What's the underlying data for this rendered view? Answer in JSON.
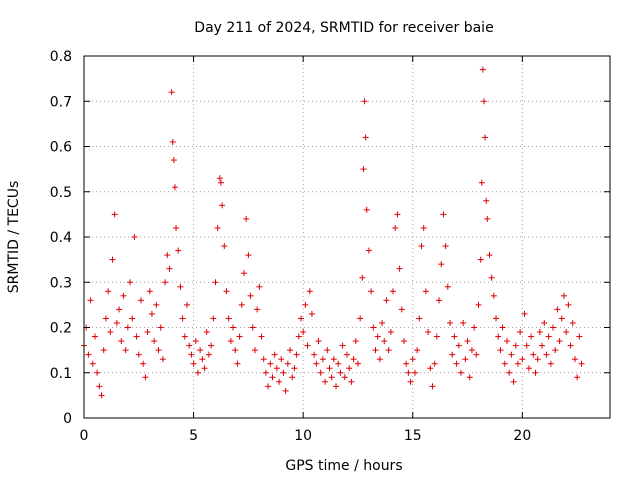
{
  "chart_data": {
    "type": "scatter",
    "title": "Day 211 of 2024, SRMTID for receiver baie",
    "xlabel": "GPS time / hours",
    "ylabel": "SRMTID / TECUs",
    "xlim": [
      0,
      24.0
    ],
    "ylim": [
      0,
      0.8
    ],
    "xticks": [
      "0",
      "5",
      "10",
      "15",
      "20"
    ],
    "yticks": [
      "0",
      "0.1",
      "0.2",
      "0.3",
      "0.4",
      "0.5",
      "0.6",
      "0.7",
      "0.8"
    ],
    "grid": true,
    "marker": "plus",
    "color": "#e00000",
    "series": [
      {
        "name": "SRMTID",
        "points": [
          [
            0.0,
            0.16
          ],
          [
            0.1,
            0.2
          ],
          [
            0.2,
            0.14
          ],
          [
            0.3,
            0.26
          ],
          [
            0.4,
            0.12
          ],
          [
            0.5,
            0.18
          ],
          [
            0.6,
            0.1
          ],
          [
            0.7,
            0.07
          ],
          [
            0.8,
            0.05
          ],
          [
            0.9,
            0.15
          ],
          [
            1.0,
            0.22
          ],
          [
            1.1,
            0.28
          ],
          [
            1.2,
            0.19
          ],
          [
            1.3,
            0.35
          ],
          [
            1.4,
            0.45
          ],
          [
            1.5,
            0.21
          ],
          [
            1.6,
            0.24
          ],
          [
            1.7,
            0.17
          ],
          [
            1.8,
            0.27
          ],
          [
            1.9,
            0.15
          ],
          [
            2.0,
            0.2
          ],
          [
            2.1,
            0.3
          ],
          [
            2.2,
            0.22
          ],
          [
            2.3,
            0.4
          ],
          [
            2.4,
            0.18
          ],
          [
            2.5,
            0.14
          ],
          [
            2.6,
            0.26
          ],
          [
            2.7,
            0.12
          ],
          [
            2.8,
            0.09
          ],
          [
            2.9,
            0.19
          ],
          [
            3.0,
            0.28
          ],
          [
            3.1,
            0.23
          ],
          [
            3.2,
            0.17
          ],
          [
            3.3,
            0.25
          ],
          [
            3.4,
            0.15
          ],
          [
            3.5,
            0.2
          ],
          [
            3.6,
            0.13
          ],
          [
            3.7,
            0.3
          ],
          [
            3.8,
            0.36
          ],
          [
            3.9,
            0.33
          ],
          [
            4.0,
            0.72
          ],
          [
            4.05,
            0.61
          ],
          [
            4.1,
            0.57
          ],
          [
            4.15,
            0.51
          ],
          [
            4.2,
            0.42
          ],
          [
            4.3,
            0.37
          ],
          [
            4.4,
            0.29
          ],
          [
            4.5,
            0.22
          ],
          [
            4.6,
            0.18
          ],
          [
            4.7,
            0.25
          ],
          [
            4.8,
            0.16
          ],
          [
            4.9,
            0.14
          ],
          [
            5.0,
            0.12
          ],
          [
            5.1,
            0.17
          ],
          [
            5.2,
            0.1
          ],
          [
            5.3,
            0.15
          ],
          [
            5.4,
            0.13
          ],
          [
            5.5,
            0.11
          ],
          [
            5.6,
            0.19
          ],
          [
            5.7,
            0.14
          ],
          [
            5.8,
            0.16
          ],
          [
            5.9,
            0.22
          ],
          [
            6.0,
            0.3
          ],
          [
            6.1,
            0.42
          ],
          [
            6.2,
            0.53
          ],
          [
            6.25,
            0.52
          ],
          [
            6.3,
            0.47
          ],
          [
            6.4,
            0.38
          ],
          [
            6.5,
            0.28
          ],
          [
            6.6,
            0.22
          ],
          [
            6.7,
            0.17
          ],
          [
            6.8,
            0.2
          ],
          [
            6.9,
            0.15
          ],
          [
            7.0,
            0.12
          ],
          [
            7.1,
            0.18
          ],
          [
            7.2,
            0.25
          ],
          [
            7.3,
            0.32
          ],
          [
            7.4,
            0.44
          ],
          [
            7.5,
            0.36
          ],
          [
            7.6,
            0.27
          ],
          [
            7.7,
            0.2
          ],
          [
            7.8,
            0.15
          ],
          [
            7.9,
            0.24
          ],
          [
            8.0,
            0.29
          ],
          [
            8.1,
            0.18
          ],
          [
            8.2,
            0.13
          ],
          [
            8.3,
            0.1
          ],
          [
            8.4,
            0.07
          ],
          [
            8.5,
            0.12
          ],
          [
            8.6,
            0.09
          ],
          [
            8.7,
            0.14
          ],
          [
            8.8,
            0.11
          ],
          [
            8.9,
            0.08
          ],
          [
            9.0,
            0.13
          ],
          [
            9.1,
            0.1
          ],
          [
            9.2,
            0.06
          ],
          [
            9.3,
            0.12
          ],
          [
            9.4,
            0.15
          ],
          [
            9.5,
            0.09
          ],
          [
            9.6,
            0.11
          ],
          [
            9.7,
            0.14
          ],
          [
            9.8,
            0.18
          ],
          [
            9.9,
            0.22
          ],
          [
            10.0,
            0.19
          ],
          [
            10.1,
            0.25
          ],
          [
            10.2,
            0.16
          ],
          [
            10.3,
            0.28
          ],
          [
            10.4,
            0.23
          ],
          [
            10.5,
            0.14
          ],
          [
            10.6,
            0.12
          ],
          [
            10.7,
            0.17
          ],
          [
            10.8,
            0.1
          ],
          [
            10.9,
            0.13
          ],
          [
            11.0,
            0.08
          ],
          [
            11.1,
            0.15
          ],
          [
            11.2,
            0.11
          ],
          [
            11.3,
            0.09
          ],
          [
            11.4,
            0.13
          ],
          [
            11.5,
            0.07
          ],
          [
            11.6,
            0.12
          ],
          [
            11.7,
            0.1
          ],
          [
            11.8,
            0.16
          ],
          [
            11.9,
            0.09
          ],
          [
            12.0,
            0.14
          ],
          [
            12.1,
            0.11
          ],
          [
            12.2,
            0.08
          ],
          [
            12.3,
            0.13
          ],
          [
            12.4,
            0.17
          ],
          [
            12.5,
            0.12
          ],
          [
            12.6,
            0.22
          ],
          [
            12.7,
            0.31
          ],
          [
            12.75,
            0.55
          ],
          [
            12.8,
            0.7
          ],
          [
            12.85,
            0.62
          ],
          [
            12.9,
            0.46
          ],
          [
            13.0,
            0.37
          ],
          [
            13.1,
            0.28
          ],
          [
            13.2,
            0.2
          ],
          [
            13.3,
            0.15
          ],
          [
            13.4,
            0.18
          ],
          [
            13.5,
            0.13
          ],
          [
            13.6,
            0.21
          ],
          [
            13.7,
            0.17
          ],
          [
            13.8,
            0.26
          ],
          [
            13.9,
            0.15
          ],
          [
            14.0,
            0.19
          ],
          [
            14.1,
            0.28
          ],
          [
            14.2,
            0.42
          ],
          [
            14.3,
            0.45
          ],
          [
            14.4,
            0.33
          ],
          [
            14.5,
            0.24
          ],
          [
            14.6,
            0.17
          ],
          [
            14.7,
            0.12
          ],
          [
            14.8,
            0.1
          ],
          [
            14.9,
            0.08
          ],
          [
            15.0,
            0.13
          ],
          [
            15.1,
            0.1
          ],
          [
            15.2,
            0.15
          ],
          [
            15.3,
            0.22
          ],
          [
            15.4,
            0.38
          ],
          [
            15.5,
            0.42
          ],
          [
            15.6,
            0.28
          ],
          [
            15.7,
            0.19
          ],
          [
            15.8,
            0.11
          ],
          [
            15.9,
            0.07
          ],
          [
            16.0,
            0.12
          ],
          [
            16.1,
            0.18
          ],
          [
            16.2,
            0.26
          ],
          [
            16.3,
            0.34
          ],
          [
            16.4,
            0.45
          ],
          [
            16.5,
            0.38
          ],
          [
            16.6,
            0.29
          ],
          [
            16.7,
            0.21
          ],
          [
            16.8,
            0.14
          ],
          [
            16.9,
            0.18
          ],
          [
            17.0,
            0.12
          ],
          [
            17.1,
            0.16
          ],
          [
            17.2,
            0.1
          ],
          [
            17.3,
            0.21
          ],
          [
            17.4,
            0.13
          ],
          [
            17.5,
            0.17
          ],
          [
            17.6,
            0.09
          ],
          [
            17.7,
            0.15
          ],
          [
            17.8,
            0.2
          ],
          [
            17.9,
            0.14
          ],
          [
            18.0,
            0.25
          ],
          [
            18.1,
            0.35
          ],
          [
            18.15,
            0.52
          ],
          [
            18.2,
            0.77
          ],
          [
            18.25,
            0.7
          ],
          [
            18.3,
            0.62
          ],
          [
            18.35,
            0.48
          ],
          [
            18.4,
            0.44
          ],
          [
            18.5,
            0.36
          ],
          [
            18.6,
            0.31
          ],
          [
            18.7,
            0.27
          ],
          [
            18.8,
            0.22
          ],
          [
            18.9,
            0.18
          ],
          [
            19.0,
            0.15
          ],
          [
            19.1,
            0.2
          ],
          [
            19.2,
            0.12
          ],
          [
            19.3,
            0.17
          ],
          [
            19.4,
            0.1
          ],
          [
            19.5,
            0.14
          ],
          [
            19.6,
            0.08
          ],
          [
            19.7,
            0.16
          ],
          [
            19.8,
            0.12
          ],
          [
            19.9,
            0.19
          ],
          [
            20.0,
            0.13
          ],
          [
            20.1,
            0.23
          ],
          [
            20.2,
            0.16
          ],
          [
            20.3,
            0.11
          ],
          [
            20.4,
            0.18
          ],
          [
            20.5,
            0.14
          ],
          [
            20.6,
            0.1
          ],
          [
            20.7,
            0.13
          ],
          [
            20.8,
            0.19
          ],
          [
            20.9,
            0.16
          ],
          [
            21.0,
            0.21
          ],
          [
            21.1,
            0.14
          ],
          [
            21.2,
            0.18
          ],
          [
            21.3,
            0.12
          ],
          [
            21.4,
            0.2
          ],
          [
            21.5,
            0.15
          ],
          [
            21.6,
            0.24
          ],
          [
            21.7,
            0.17
          ],
          [
            21.8,
            0.22
          ],
          [
            21.9,
            0.27
          ],
          [
            22.0,
            0.19
          ],
          [
            22.1,
            0.25
          ],
          [
            22.2,
            0.16
          ],
          [
            22.3,
            0.21
          ],
          [
            22.4,
            0.13
          ],
          [
            22.5,
            0.09
          ],
          [
            22.6,
            0.18
          ],
          [
            22.7,
            0.12
          ]
        ]
      }
    ]
  }
}
